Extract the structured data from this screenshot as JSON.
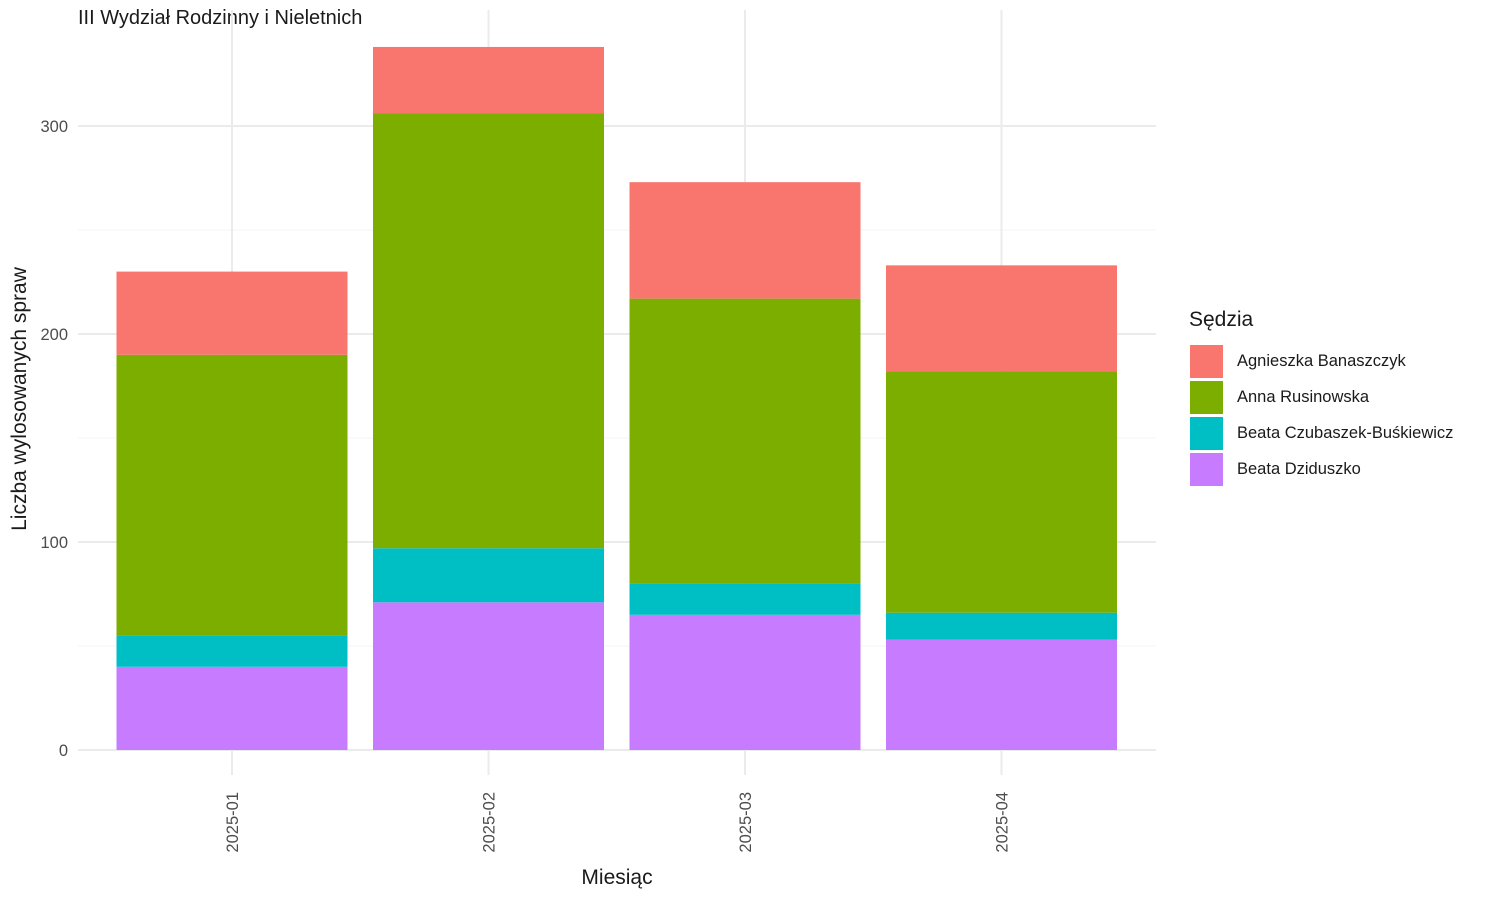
{
  "chart_data": {
    "type": "bar",
    "stacked": true,
    "title": "III Wydział Rodzinny i Nieletnich",
    "xlabel": "Miesiąc",
    "ylabel": "Liczba wylosowanych spraw",
    "legend_title": "Sędzia",
    "legend_position": "right",
    "grid": true,
    "ylim": [
      0,
      345
    ],
    "y_ticks": [
      0,
      100,
      200,
      300
    ],
    "categories": [
      "2025-01",
      "2025-02",
      "2025-03",
      "2025-04"
    ],
    "series": [
      {
        "name": "Beata Dziduszko",
        "color": "#C77CFF",
        "values": [
          40,
          71,
          65,
          53
        ]
      },
      {
        "name": "Beata Czubaszek-Buśkiewicz",
        "color": "#00BFC4",
        "values": [
          15,
          26,
          15,
          13
        ]
      },
      {
        "name": "Anna Rusinowska",
        "color": "#7CAE00",
        "values": [
          135,
          209,
          137,
          116
        ]
      },
      {
        "name": "Agnieszka Banaszczyk",
        "color": "#F8766D",
        "values": [
          40,
          32,
          56,
          51
        ]
      }
    ],
    "legend_order": [
      "Agnieszka Banaszczyk",
      "Anna Rusinowska",
      "Beata Czubaszek-Buśkiewicz",
      "Beata Dziduszko"
    ]
  }
}
